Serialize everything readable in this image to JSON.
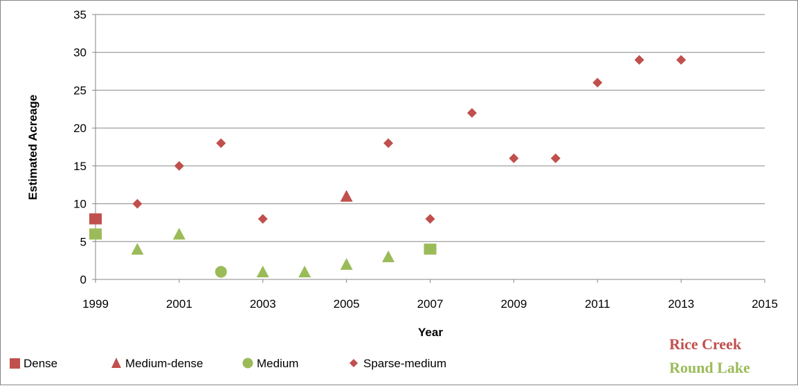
{
  "colors": {
    "rice_creek": "#C0504D",
    "round_lake": "#9BBB59",
    "gridline": "#868686",
    "axis": "#868686"
  },
  "chart_data": {
    "type": "scatter",
    "xlabel": "Year",
    "ylabel": "Estimated Acreage",
    "xlim": [
      1999,
      2015
    ],
    "ylim": [
      0,
      35
    ],
    "x_ticks": [
      1999,
      2001,
      2003,
      2005,
      2007,
      2009,
      2011,
      2013,
      2015
    ],
    "y_ticks": [
      0,
      5,
      10,
      15,
      20,
      25,
      30,
      35
    ],
    "grid": "horizontal",
    "legend_position": "bottom-left",
    "legend": [
      {
        "label": "Dense",
        "marker": "square"
      },
      {
        "label": "Medium-dense",
        "marker": "triangle"
      },
      {
        "label": "Medium",
        "marker": "circle"
      },
      {
        "label": "Sparse-medium",
        "marker": "diamond"
      }
    ],
    "sites": [
      {
        "label": "Rice Creek",
        "color": "#C0504D"
      },
      {
        "label": "Round Lake",
        "color": "#9BBB59"
      }
    ],
    "points": [
      {
        "site": "Rice Creek",
        "density": "Dense",
        "marker": "square",
        "x": 1999,
        "y": 8
      },
      {
        "site": "Round Lake",
        "density": "Dense",
        "marker": "square",
        "x": 1999,
        "y": 6
      },
      {
        "site": "Round Lake",
        "density": "Dense",
        "marker": "square",
        "x": 2007,
        "y": 4
      },
      {
        "site": "Rice Creek",
        "density": "Medium-dense",
        "marker": "triangle",
        "x": 2005,
        "y": 11
      },
      {
        "site": "Round Lake",
        "density": "Medium-dense",
        "marker": "triangle",
        "x": 2000,
        "y": 4
      },
      {
        "site": "Round Lake",
        "density": "Medium-dense",
        "marker": "triangle",
        "x": 2001,
        "y": 6
      },
      {
        "site": "Round Lake",
        "density": "Medium-dense",
        "marker": "triangle",
        "x": 2003,
        "y": 1
      },
      {
        "site": "Round Lake",
        "density": "Medium-dense",
        "marker": "triangle",
        "x": 2004,
        "y": 1
      },
      {
        "site": "Round Lake",
        "density": "Medium-dense",
        "marker": "triangle",
        "x": 2005,
        "y": 2
      },
      {
        "site": "Round Lake",
        "density": "Medium-dense",
        "marker": "triangle",
        "x": 2006,
        "y": 3
      },
      {
        "site": "Round Lake",
        "density": "Medium",
        "marker": "circle",
        "x": 2002,
        "y": 1
      },
      {
        "site": "Rice Creek",
        "density": "Sparse-medium",
        "marker": "diamond",
        "x": 2000,
        "y": 10
      },
      {
        "site": "Rice Creek",
        "density": "Sparse-medium",
        "marker": "diamond",
        "x": 2001,
        "y": 15
      },
      {
        "site": "Rice Creek",
        "density": "Sparse-medium",
        "marker": "diamond",
        "x": 2002,
        "y": 18
      },
      {
        "site": "Rice Creek",
        "density": "Sparse-medium",
        "marker": "diamond",
        "x": 2003,
        "y": 8
      },
      {
        "site": "Rice Creek",
        "density": "Sparse-medium",
        "marker": "diamond",
        "x": 2006,
        "y": 18
      },
      {
        "site": "Rice Creek",
        "density": "Sparse-medium",
        "marker": "diamond",
        "x": 2007,
        "y": 8
      },
      {
        "site": "Rice Creek",
        "density": "Sparse-medium",
        "marker": "diamond",
        "x": 2008,
        "y": 22
      },
      {
        "site": "Rice Creek",
        "density": "Sparse-medium",
        "marker": "diamond",
        "x": 2009,
        "y": 16
      },
      {
        "site": "Rice Creek",
        "density": "Sparse-medium",
        "marker": "diamond",
        "x": 2010,
        "y": 16
      },
      {
        "site": "Rice Creek",
        "density": "Sparse-medium",
        "marker": "diamond",
        "x": 2011,
        "y": 26
      },
      {
        "site": "Rice Creek",
        "density": "Sparse-medium",
        "marker": "diamond",
        "x": 2012,
        "y": 29
      },
      {
        "site": "Rice Creek",
        "density": "Sparse-medium",
        "marker": "diamond",
        "x": 2013,
        "y": 29
      }
    ]
  }
}
